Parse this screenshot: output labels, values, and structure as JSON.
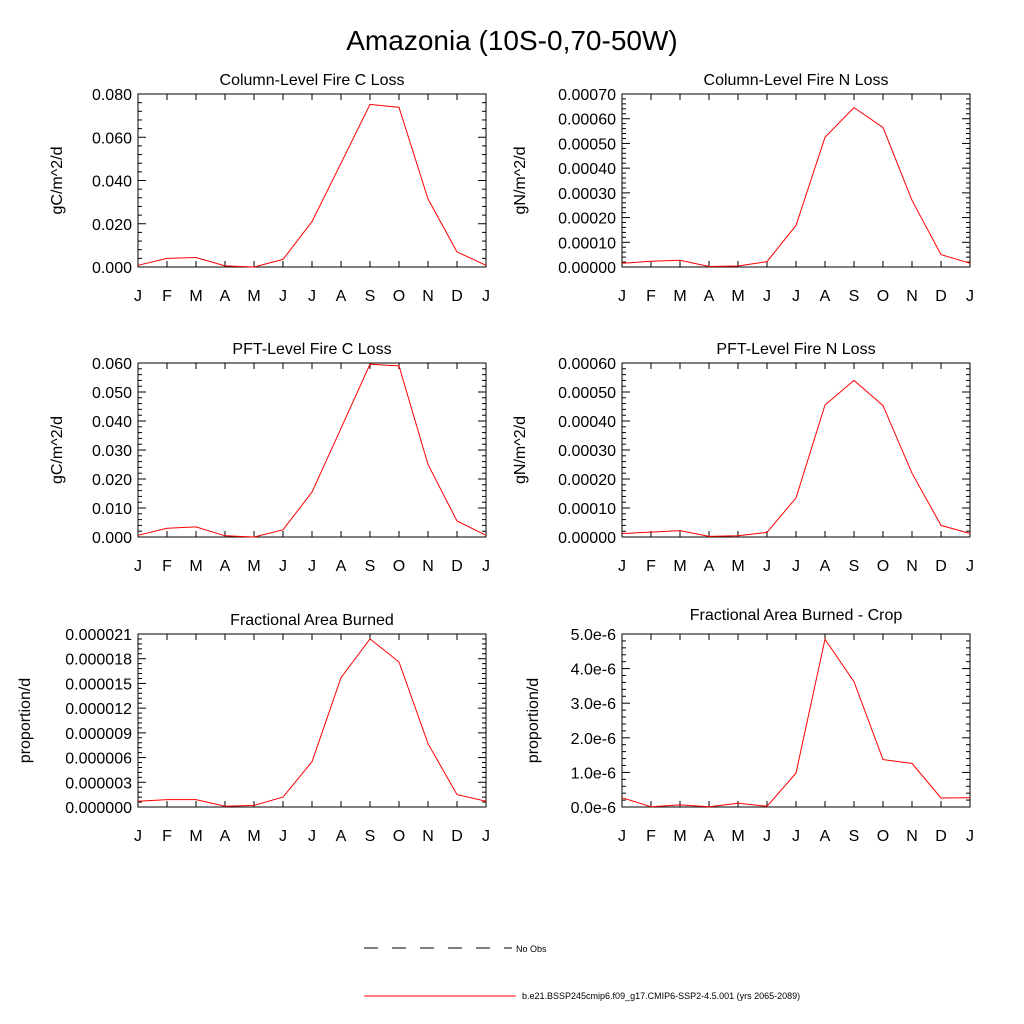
{
  "figure": {
    "title": "Amazonia (10S-0,70-50W)",
    "legend": {
      "obs_label": "No Obs",
      "model_label": "b.e21.BSSP245cmip6.f09_g17.CMIP6-SSP2-4.5.001 (yrs 2065-2089)",
      "model_color": "#ff0000",
      "obs_color": "#000000"
    }
  },
  "chart_data": [
    {
      "type": "line",
      "title": "Column-Level Fire C Loss",
      "xlabel": "",
      "ylabel": "gC/m^2/d",
      "categories": [
        "J",
        "F",
        "M",
        "A",
        "M",
        "J",
        "J",
        "A",
        "S",
        "O",
        "N",
        "D",
        "J"
      ],
      "ylim": [
        0,
        0.08
      ],
      "yticks": [
        "0.000",
        "0.020",
        "0.040",
        "0.060",
        "0.080"
      ],
      "series": [
        {
          "values": [
            0.0008,
            0.004,
            0.0044,
            0.0005,
            0.0,
            0.0035,
            0.021,
            0.048,
            0.0752,
            0.0738,
            0.0315,
            0.007,
            0.0008
          ]
        }
      ]
    },
    {
      "type": "line",
      "title": "Column-Level Fire N Loss",
      "xlabel": "",
      "ylabel": "gN/m^2/d",
      "categories": [
        "J",
        "F",
        "M",
        "A",
        "M",
        "J",
        "J",
        "A",
        "S",
        "O",
        "N",
        "D",
        "J"
      ],
      "ylim": [
        0,
        0.0007
      ],
      "yticks": [
        "0.00000",
        "0.00010",
        "0.00020",
        "0.00030",
        "0.00040",
        "0.00050",
        "0.00060",
        "0.00070"
      ],
      "series": [
        {
          "values": [
            1.5e-05,
            2.3e-05,
            2.7e-05,
            2e-06,
            4e-06,
            2.2e-05,
            0.000168,
            0.000525,
            0.000645,
            0.000565,
            0.00027,
            5e-05,
            1.5e-05
          ]
        }
      ]
    },
    {
      "type": "line",
      "title": "PFT-Level Fire C Loss",
      "xlabel": "",
      "ylabel": "gC/m^2/d",
      "categories": [
        "J",
        "F",
        "M",
        "A",
        "M",
        "J",
        "J",
        "A",
        "S",
        "O",
        "N",
        "D",
        "J"
      ],
      "ylim": [
        0,
        0.06
      ],
      "yticks": [
        "0.000",
        "0.010",
        "0.020",
        "0.030",
        "0.040",
        "0.050",
        "0.060"
      ],
      "series": [
        {
          "values": [
            0.0006,
            0.003,
            0.0035,
            0.0004,
            0.0,
            0.0025,
            0.0155,
            0.0375,
            0.0596,
            0.059,
            0.025,
            0.0055,
            0.0006
          ]
        }
      ]
    },
    {
      "type": "line",
      "title": "PFT-Level Fire N Loss",
      "xlabel": "",
      "ylabel": "gN/m^2/d",
      "categories": [
        "J",
        "F",
        "M",
        "A",
        "M",
        "J",
        "J",
        "A",
        "S",
        "O",
        "N",
        "D",
        "J"
      ],
      "ylim": [
        0,
        0.0006
      ],
      "yticks": [
        "0.00000",
        "0.00010",
        "0.00020",
        "0.00030",
        "0.00040",
        "0.00050",
        "0.00060"
      ],
      "series": [
        {
          "values": [
            1.2e-05,
            1.7e-05,
            2.2e-05,
            2e-06,
            4e-06,
            1.6e-05,
            0.000135,
            0.000455,
            0.00054,
            0.000453,
            0.00022,
            4e-05,
            1.2e-05
          ]
        }
      ]
    },
    {
      "type": "line",
      "title": "Fractional Area Burned",
      "xlabel": "",
      "ylabel": "proportion/d",
      "categories": [
        "J",
        "F",
        "M",
        "A",
        "M",
        "J",
        "J",
        "A",
        "S",
        "O",
        "N",
        "D",
        "J"
      ],
      "ylim": [
        0,
        2.1e-05
      ],
      "yticks": [
        "0.000000",
        "0.000003",
        "0.000006",
        "0.000009",
        "0.000012",
        "0.000015",
        "0.000018",
        "0.000021"
      ],
      "series": [
        {
          "values": [
            7e-07,
            9e-07,
            9e-07,
            1e-07,
            2e-07,
            1.2e-06,
            5.5e-06,
            1.57e-05,
            2.04e-05,
            1.76e-05,
            7.7e-06,
            1.5e-06,
            7e-07
          ]
        }
      ]
    },
    {
      "type": "line",
      "title": "Fractional Area Burned - Crop",
      "xlabel": "",
      "ylabel": "proportion/d",
      "categories": [
        "J",
        "F",
        "M",
        "A",
        "M",
        "J",
        "J",
        "A",
        "S",
        "O",
        "N",
        "D",
        "J"
      ],
      "ylim": [
        0,
        5e-06
      ],
      "yticks": [
        "0.0e-6",
        "1.0e-6",
        "2.0e-6",
        "3.0e-6",
        "4.0e-6",
        "5.0e-6"
      ],
      "series": [
        {
          "values": [
            2.7e-07,
            1e-08,
            6e-08,
            1e-08,
            1.1e-07,
            2e-08,
            9.8e-07,
            4.85e-06,
            3.62e-06,
            1.37e-06,
            1.26e-06,
            2.6e-07,
            2.7e-07
          ]
        }
      ]
    }
  ]
}
